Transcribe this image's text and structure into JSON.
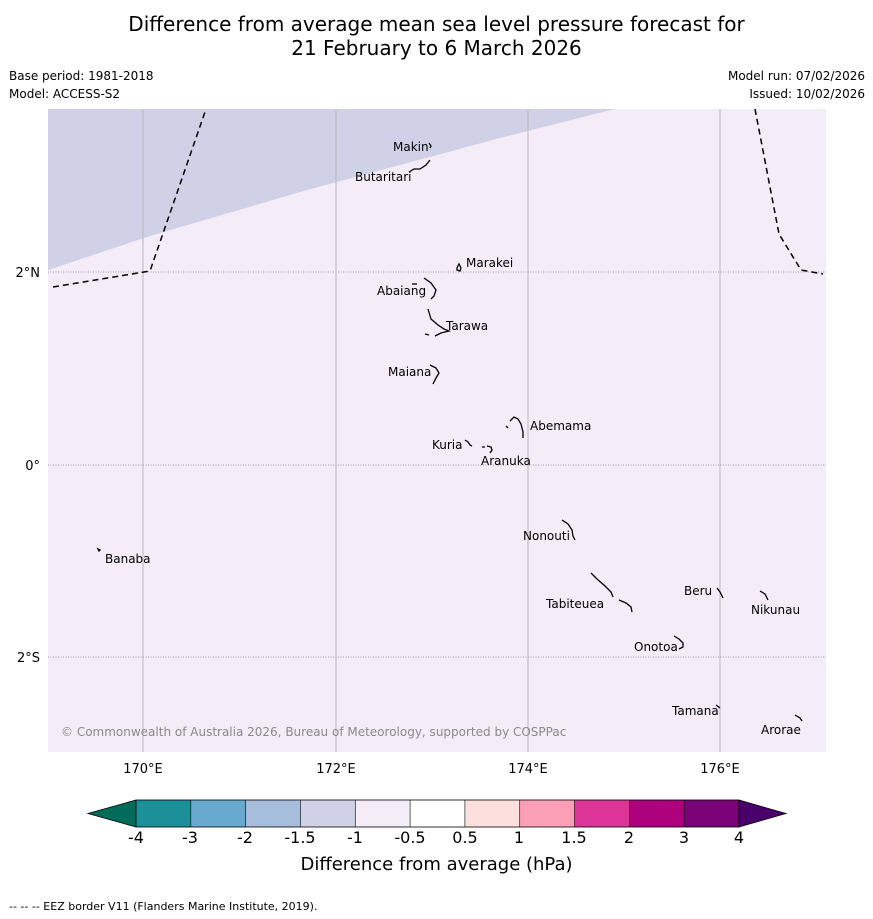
{
  "header": {
    "title_line1": "Difference from average mean sea level pressure forecast for",
    "title_line2": "21 February to 6 March 2026",
    "base_period": "Base period: 1981-2018",
    "model": "Model: ACCESS-S2",
    "model_run": "Model run: 07/02/2026",
    "issued": "Issued: 10/02/2026"
  },
  "map": {
    "lon_labels": [
      "170°E",
      "172°E",
      "174°E",
      "176°E"
    ],
    "lat_labels": [
      "2°N",
      "0°",
      "2°S"
    ],
    "place_labels": [
      "Makin",
      "Butaritari",
      "Marakei",
      "Abaiang",
      "Tarawa",
      "Maiana",
      "Abemama",
      "Kuria",
      "Aranuka",
      "Nonouti",
      "Banaba",
      "Beru",
      "Nikunau",
      "Tabiteuea",
      "Onotoa",
      "Tamana",
      "Arorae"
    ],
    "copyright": "© Commonwealth of Australia 2026, Bureau of Meteorology, supported by COSPPac",
    "shading": {
      "upper_left_band_color": "#d0d1e6",
      "background_color": "#f4ecf6"
    }
  },
  "colorbar": {
    "tick_labels": [
      "-4",
      "-3",
      "-2",
      "-1.5",
      "-1",
      "-0.5",
      "0.5",
      "1",
      "1.5",
      "2",
      "3",
      "4"
    ],
    "colors": [
      "#016c59",
      "#1c9099",
      "#67a9cf",
      "#a6bddb",
      "#d0d1e6",
      "#f4ecf6",
      "#ffffff",
      "#fde0dd",
      "#fa9fb5",
      "#dd3497",
      "#ae017e",
      "#7a0177",
      "#49006a"
    ],
    "label": "Difference from average (hPa)"
  },
  "footer": {
    "legend": "-- -- -- EEZ border V11 (Flanders Marine Institute, 2019)."
  }
}
